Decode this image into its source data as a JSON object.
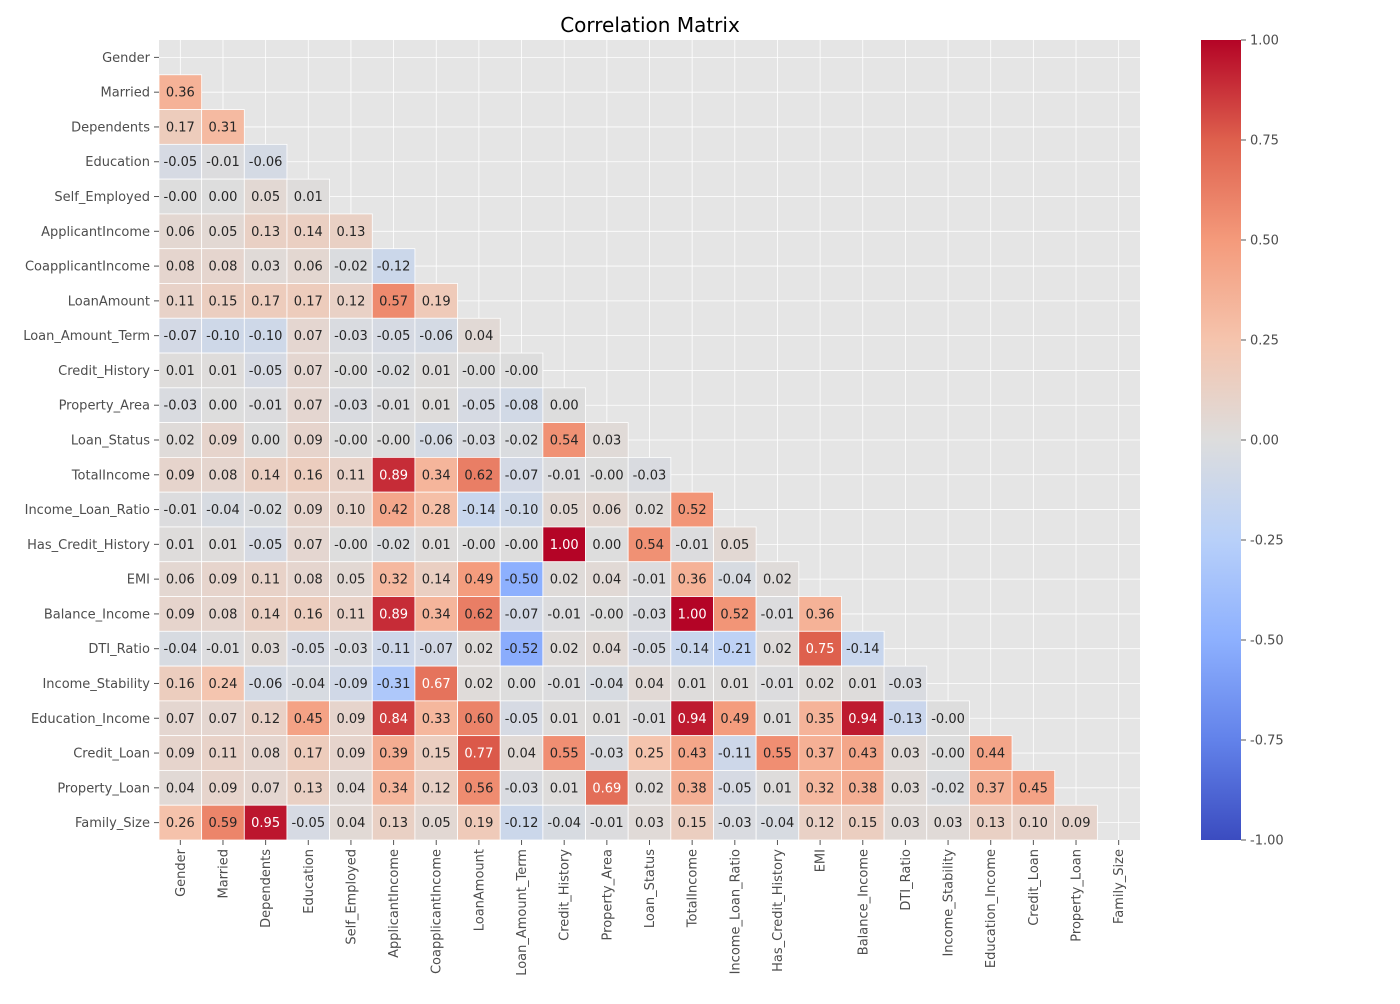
{
  "chart_data": {
    "type": "heatmap",
    "title": "Correlation Matrix",
    "colormap": "coolwarm",
    "vmin": -1.0,
    "vmax": 1.0,
    "mask": "upper-triangle-and-diagonal",
    "background_color": "#e5e5e5",
    "value_format": "0.00",
    "labels": [
      "Gender",
      "Married",
      "Dependents",
      "Education",
      "Self_Employed",
      "ApplicantIncome",
      "CoapplicantIncome",
      "LoanAmount",
      "Loan_Amount_Term",
      "Credit_History",
      "Property_Area",
      "Loan_Status",
      "TotalIncome",
      "Income_Loan_Ratio",
      "Has_Credit_History",
      "EMI",
      "Balance_Income",
      "DTI_Ratio",
      "Income_Stability",
      "Education_Income",
      "Credit_Loan",
      "Property_Loan",
      "Family_Size"
    ],
    "rows": [
      [],
      [
        0.36
      ],
      [
        0.17,
        0.31
      ],
      [
        -0.05,
        -0.01,
        -0.06
      ],
      [
        -0.0,
        0.0,
        0.05,
        0.01
      ],
      [
        0.06,
        0.05,
        0.13,
        0.14,
        0.13
      ],
      [
        0.08,
        0.08,
        0.03,
        0.06,
        -0.02,
        -0.12
      ],
      [
        0.11,
        0.15,
        0.17,
        0.17,
        0.12,
        0.57,
        0.19
      ],
      [
        -0.07,
        -0.1,
        -0.1,
        0.07,
        -0.03,
        -0.05,
        -0.06,
        0.04
      ],
      [
        0.01,
        0.01,
        -0.05,
        0.07,
        -0.0,
        -0.02,
        0.01,
        -0.0,
        -0.0
      ],
      [
        -0.03,
        0.0,
        -0.01,
        0.07,
        -0.03,
        -0.01,
        0.01,
        -0.05,
        -0.08,
        0.0
      ],
      [
        0.02,
        0.09,
        0.0,
        0.09,
        -0.0,
        -0.0,
        -0.06,
        -0.03,
        -0.02,
        0.54,
        0.03
      ],
      [
        0.09,
        0.08,
        0.14,
        0.16,
        0.11,
        0.89,
        0.34,
        0.62,
        -0.07,
        -0.01,
        -0.0,
        -0.03
      ],
      [
        -0.01,
        -0.04,
        -0.02,
        0.09,
        0.1,
        0.42,
        0.28,
        -0.14,
        -0.1,
        0.05,
        0.06,
        0.02,
        0.52
      ],
      [
        0.01,
        0.01,
        -0.05,
        0.07,
        -0.0,
        -0.02,
        0.01,
        -0.0,
        -0.0,
        1.0,
        0.0,
        0.54,
        -0.01,
        0.05
      ],
      [
        0.06,
        0.09,
        0.11,
        0.08,
        0.05,
        0.32,
        0.14,
        0.49,
        -0.5,
        0.02,
        0.04,
        -0.01,
        0.36,
        -0.04,
        0.02
      ],
      [
        0.09,
        0.08,
        0.14,
        0.16,
        0.11,
        0.89,
        0.34,
        0.62,
        -0.07,
        -0.01,
        -0.0,
        -0.03,
        1.0,
        0.52,
        -0.01,
        0.36
      ],
      [
        -0.04,
        -0.01,
        0.03,
        -0.05,
        -0.03,
        -0.11,
        -0.07,
        0.02,
        -0.52,
        0.02,
        0.04,
        -0.05,
        -0.14,
        -0.21,
        0.02,
        0.75,
        -0.14
      ],
      [
        0.16,
        0.24,
        -0.06,
        -0.04,
        -0.09,
        -0.31,
        0.67,
        0.02,
        0.0,
        -0.01,
        -0.04,
        0.04,
        0.01,
        0.01,
        -0.01,
        0.02,
        0.01,
        -0.03
      ],
      [
        0.07,
        0.07,
        0.12,
        0.45,
        0.09,
        0.84,
        0.33,
        0.6,
        -0.05,
        0.01,
        0.01,
        -0.01,
        0.94,
        0.49,
        0.01,
        0.35,
        0.94,
        -0.13,
        -0.0
      ],
      [
        0.09,
        0.11,
        0.08,
        0.17,
        0.09,
        0.39,
        0.15,
        0.77,
        0.04,
        0.55,
        -0.03,
        0.25,
        0.43,
        -0.11,
        0.55,
        0.37,
        0.43,
        0.03,
        -0.0,
        0.44
      ],
      [
        0.04,
        0.09,
        0.07,
        0.13,
        0.04,
        0.34,
        0.12,
        0.56,
        -0.03,
        0.01,
        0.69,
        0.02,
        0.38,
        -0.05,
        0.01,
        0.32,
        0.38,
        0.03,
        -0.02,
        0.37,
        0.45
      ],
      [
        0.26,
        0.59,
        0.95,
        -0.05,
        0.04,
        0.13,
        0.05,
        0.19,
        -0.12,
        -0.04,
        -0.01,
        0.03,
        0.15,
        -0.03,
        -0.04,
        0.12,
        0.15,
        0.03,
        0.03,
        0.13,
        0.1,
        0.09
      ]
    ],
    "colorbar_ticks": [
      "1.00",
      "0.75",
      "0.50",
      "0.25",
      "0.00",
      "-0.25",
      "-0.50",
      "-0.75",
      "-1.00"
    ],
    "colorbar_tick_values": [
      1.0,
      0.75,
      0.5,
      0.25,
      0.0,
      -0.25,
      -0.5,
      -0.75,
      -1.0
    ]
  }
}
